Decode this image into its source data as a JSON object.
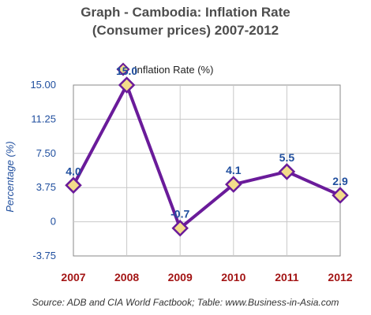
{
  "chart_data": {
    "type": "line",
    "title": "Graph - Cambodia: Inflation Rate",
    "subtitle": "(Consumer prices) 2007-2012",
    "ylabel": "Percentage (%)",
    "xlabel": "",
    "categories": [
      "2007",
      "2008",
      "2009",
      "2010",
      "2011",
      "2012"
    ],
    "series": [
      {
        "name": "Inflation Rate (%)",
        "values": [
          4.0,
          15.0,
          -0.7,
          4.1,
          5.5,
          2.9
        ],
        "data_labels": [
          "4.0",
          "15.0",
          "-0.7",
          "4.1",
          "5.5",
          "2.9"
        ]
      }
    ],
    "yticks": [
      15.0,
      11.25,
      7.5,
      3.75,
      0,
      -3.75
    ],
    "ytick_labels": [
      "15.00",
      "11.25",
      "7.50",
      "3.75",
      "0",
      "-3.75"
    ],
    "ylim": [
      -3.75,
      15.0
    ],
    "grid": true,
    "legend_position": "top",
    "colors": {
      "line": "#6a1b9a",
      "marker_fill": "#f3dc8a",
      "x_tick_labels": "#a31515",
      "y_tick_labels": "#1f4e9e",
      "data_labels": "#1f4e9e",
      "grid": "#c8c8c8"
    }
  },
  "source_text": "Source: ADB and CIA World Factbook; Table: www.Business-in-Asia.com"
}
